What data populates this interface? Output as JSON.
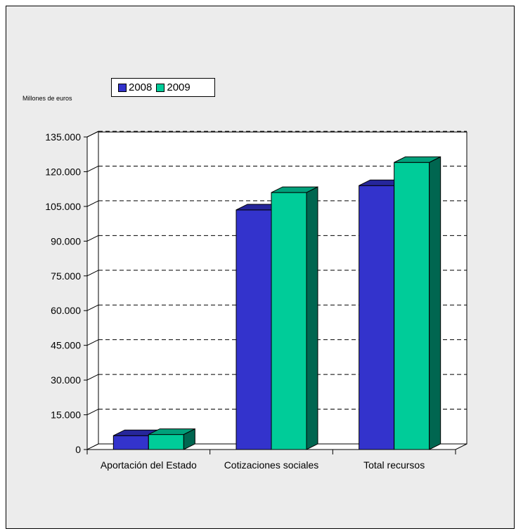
{
  "chart_data": {
    "type": "bar",
    "unit_label": "Millones de euros",
    "categories": [
      "Aportación del Estado",
      "Cotizaciones sociales",
      "Total recursos"
    ],
    "series": [
      {
        "name": "2008",
        "values": [
          6000,
          103500,
          114000
        ],
        "color": "#3333cc",
        "side_color": "#1a1a80",
        "top_color": "#26269a"
      },
      {
        "name": "2009",
        "values": [
          6500,
          111000,
          124000
        ],
        "color": "#00cc99",
        "side_color": "#006650",
        "top_color": "#00a07a"
      }
    ],
    "ylim": [
      0,
      135000
    ],
    "yticks": [
      "0",
      "15.000",
      "30.000",
      "45.000",
      "60.000",
      "75.000",
      "90.000",
      "105.000",
      "120.000",
      "135.000"
    ],
    "grid": true,
    "legend_position": "top-left",
    "background_color": "#ececec"
  }
}
